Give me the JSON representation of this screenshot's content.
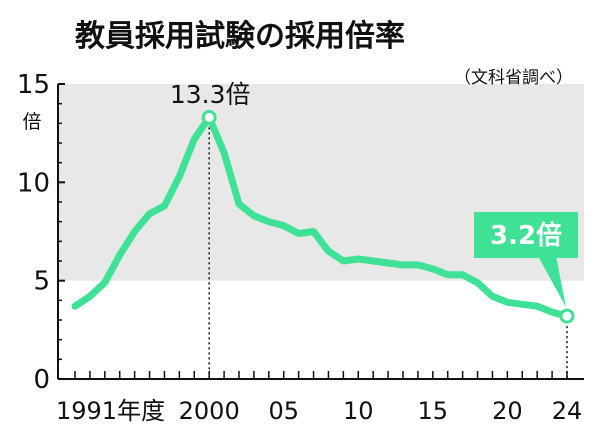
{
  "chart_data": {
    "type": "line",
    "title": "教員採用試験の採用倍率",
    "source": "（文科省調べ）",
    "y_unit": "倍",
    "ylim": [
      0,
      15
    ],
    "yticks": [
      "0",
      "5",
      "10",
      "15"
    ],
    "xlim": [
      1991,
      2024
    ],
    "xticks": [
      {
        "label": "1991年度",
        "x": 1991
      },
      {
        "label": "2000",
        "x": 2000
      },
      {
        "label": "05",
        "x": 2005
      },
      {
        "label": "10",
        "x": 2010
      },
      {
        "label": "15",
        "x": 2015
      },
      {
        "label": "20",
        "x": 2020
      },
      {
        "label": "24",
        "x": 2024
      }
    ],
    "grid_bands": true,
    "series": [
      {
        "x": [
          1991,
          1992,
          1993,
          1994,
          1995,
          1996,
          1997,
          1998,
          1999,
          2000,
          2001,
          2002,
          2003,
          2004,
          2005,
          2006,
          2007,
          2008,
          2009,
          2010,
          2011,
          2012,
          2013,
          2014,
          2015,
          2016,
          2017,
          2018,
          2019,
          2020,
          2021,
          2022,
          2023,
          2024
        ],
        "y": [
          3.7,
          4.2,
          4.9,
          6.3,
          7.5,
          8.4,
          8.8,
          10.3,
          12.2,
          13.3,
          11.5,
          8.9,
          8.3,
          8.0,
          7.8,
          7.4,
          7.5,
          6.5,
          6.0,
          6.1,
          6.0,
          5.9,
          5.8,
          5.8,
          5.6,
          5.3,
          5.3,
          4.9,
          4.2,
          3.9,
          3.8,
          3.7,
          3.4,
          3.2
        ]
      }
    ],
    "annotations": [
      {
        "x": 2000,
        "y": 13.3,
        "label": "13.3倍"
      },
      {
        "x": 2024,
        "y": 3.2,
        "label": "3.2倍"
      }
    ],
    "colors": {
      "line": "#3fe197",
      "band": "#e8e8e8",
      "callout": "#3fe197"
    }
  }
}
